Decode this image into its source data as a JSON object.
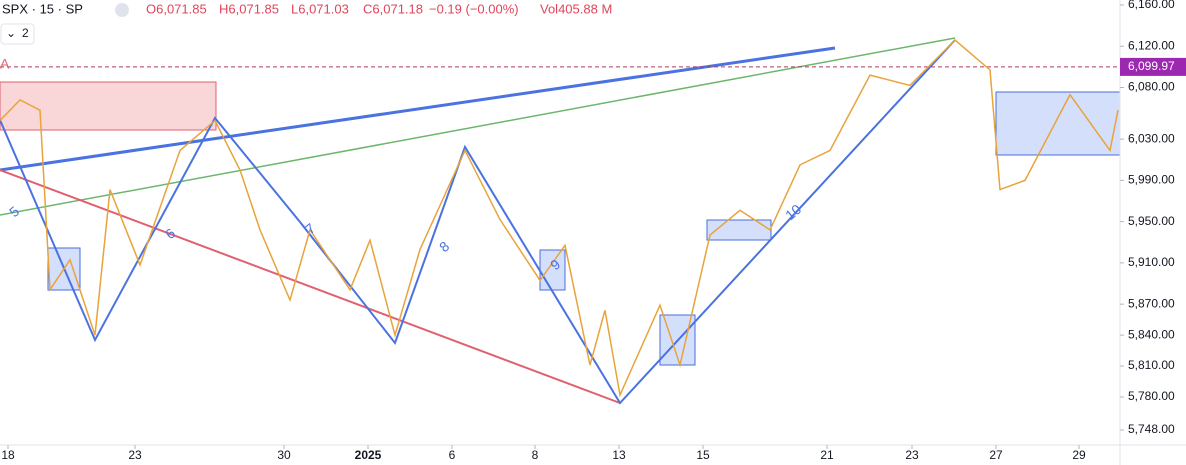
{
  "chart_data": {
    "type": "line",
    "header": {
      "symbol": "SPX · 15 · SP",
      "open": "O6,071.85",
      "high": "H6,071.85",
      "low": "L6,071.03",
      "close": "C6,071.18",
      "change": "−0.19 (−0.00%)",
      "volume": "Vol405.88 M",
      "interval_count": "2"
    },
    "x": [
      0,
      20,
      40,
      50,
      70,
      95,
      110,
      140,
      180,
      215,
      240,
      260,
      290,
      310,
      350,
      370,
      395,
      420,
      465,
      500,
      540,
      565,
      590,
      605,
      620,
      660,
      680,
      710,
      740,
      770,
      800,
      830,
      870,
      910,
      955,
      990,
      1000,
      1025,
      1070,
      1110,
      1118
    ],
    "series": [
      {
        "color": "#e8a33a",
        "values": [
          6048,
          6068,
          6058,
          5884,
          5913,
          5840,
          5981,
          5908,
          6019,
          6048,
          6000,
          5942,
          5874,
          5942,
          5884,
          5932,
          5840,
          5923,
          6019,
          5952,
          5893,
          5927,
          5811,
          5864,
          5782,
          5869,
          5811,
          5937,
          5961,
          5942,
          6005,
          6019,
          6092,
          6082,
          6126,
          6097,
          5981,
          5990,
          6073,
          6019,
          6058
        ]
      }
    ],
    "xlim": [
      0,
      1118
    ],
    "xticks": [
      {
        "value": 8,
        "label": "18"
      },
      {
        "value": 135,
        "label": "23"
      },
      {
        "value": 284,
        "label": "30"
      },
      {
        "value": 368,
        "label": "2025"
      },
      {
        "value": 452,
        "label": "6"
      },
      {
        "value": 535,
        "label": "8"
      },
      {
        "value": 619,
        "label": "13"
      },
      {
        "value": 703,
        "label": "15"
      },
      {
        "value": 827,
        "label": "21"
      },
      {
        "value": 912,
        "label": "23"
      },
      {
        "value": 996,
        "label": "27"
      },
      {
        "value": 1079,
        "label": "29"
      }
    ],
    "ylim": [
      5733.5,
      6164.8
    ],
    "yticks": [
      {
        "value": 6160,
        "label": "6,160.00"
      },
      {
        "value": 6120,
        "label": "6,120.00"
      },
      {
        "value": 6080,
        "label": "6,080.00"
      },
      {
        "value": 6030,
        "label": "6,030.00"
      },
      {
        "value": 5990,
        "label": "5,990.00"
      },
      {
        "value": 5950,
        "label": "5,950.00"
      },
      {
        "value": 5910,
        "label": "5,910.00"
      },
      {
        "value": 5870,
        "label": "5,870.00"
      },
      {
        "value": 5840,
        "label": "5,840.00"
      },
      {
        "value": 5810,
        "label": "5,810.00"
      },
      {
        "value": 5780,
        "label": "5,780.00"
      },
      {
        "value": 5748,
        "label": "5,748.00"
      }
    ],
    "last_price": {
      "value": 6099.97,
      "label": "6,099.97"
    },
    "level_label": "A",
    "annotations": [
      "5",
      "6",
      "7",
      "8",
      "9",
      "10"
    ]
  }
}
